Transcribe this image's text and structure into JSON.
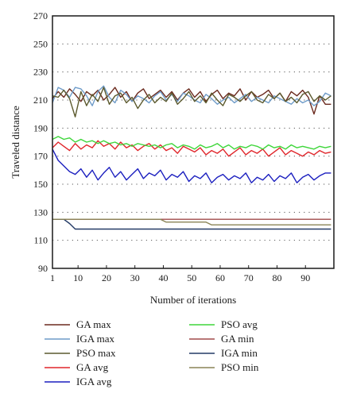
{
  "chart_data": {
    "type": "line",
    "xlabel": "Number of iterations",
    "ylabel": "Traveled distance",
    "xlim": [
      1,
      100
    ],
    "ylim": [
      90,
      270
    ],
    "x_ticks": [
      1,
      10,
      20,
      30,
      40,
      50,
      60,
      70,
      80,
      90
    ],
    "y_ticks": [
      90,
      110,
      130,
      150,
      170,
      190,
      210,
      230,
      250,
      270
    ],
    "grid": "horizontal dotted",
    "legend_position": "bottom, two columns",
    "x": [
      1,
      3,
      5,
      7,
      9,
      11,
      13,
      15,
      17,
      19,
      21,
      23,
      25,
      27,
      29,
      31,
      33,
      35,
      37,
      39,
      41,
      43,
      45,
      47,
      49,
      51,
      53,
      55,
      57,
      59,
      61,
      63,
      65,
      67,
      69,
      71,
      73,
      75,
      77,
      79,
      81,
      83,
      85,
      87,
      89,
      91,
      93,
      95,
      97,
      99
    ],
    "series": [
      {
        "name": "GA max",
        "color": "#6b2a1e",
        "values": [
          211,
          216,
          212,
          218,
          214,
          209,
          216,
          213,
          217,
          210,
          214,
          219,
          212,
          216,
          209,
          215,
          218,
          211,
          214,
          217,
          212,
          216,
          210,
          215,
          218,
          212,
          216,
          209,
          214,
          217,
          211,
          215,
          213,
          218,
          210,
          216,
          212,
          214,
          217,
          211,
          215,
          209,
          216,
          213,
          217,
          212,
          200,
          213,
          207,
          207
        ]
      },
      {
        "name": "IGA max",
        "color": "#6f9cc9",
        "values": [
          208,
          219,
          217,
          212,
          219,
          218,
          213,
          206,
          216,
          220,
          212,
          208,
          217,
          214,
          209,
          213,
          211,
          208,
          213,
          216,
          210,
          214,
          209,
          215,
          213,
          210,
          208,
          214,
          211,
          207,
          210,
          212,
          208,
          211,
          214,
          209,
          212,
          210,
          208,
          213,
          211,
          209,
          207,
          211,
          208,
          210,
          206,
          209,
          215,
          213
        ]
      },
      {
        "name": "PSO max",
        "color": "#5c5a2e",
        "values": [
          213,
          212,
          217,
          211,
          198,
          216,
          206,
          214,
          209,
          219,
          207,
          213,
          215,
          208,
          212,
          204,
          210,
          214,
          208,
          212,
          209,
          215,
          207,
          211,
          216,
          209,
          213,
          208,
          215,
          210,
          206,
          214,
          212,
          209,
          213,
          216,
          210,
          208,
          214,
          211,
          215,
          209,
          212,
          208,
          214,
          216,
          209,
          213,
          210,
          213
        ]
      },
      {
        "name": "GA avg",
        "color": "#e0252a",
        "values": [
          176,
          180,
          177,
          174,
          179,
          175,
          178,
          176,
          181,
          177,
          179,
          175,
          180,
          176,
          178,
          174,
          177,
          179,
          175,
          178,
          174,
          176,
          172,
          177,
          175,
          173,
          176,
          171,
          174,
          172,
          175,
          170,
          173,
          176,
          171,
          174,
          172,
          175,
          170,
          173,
          176,
          171,
          174,
          172,
          170,
          173,
          171,
          174,
          172,
          173
        ]
      },
      {
        "name": "IGA avg",
        "color": "#1b1fbf",
        "values": [
          175,
          167,
          163,
          159,
          157,
          161,
          155,
          160,
          153,
          158,
          162,
          155,
          159,
          153,
          157,
          161,
          154,
          158,
          156,
          160,
          153,
          157,
          155,
          159,
          152,
          156,
          154,
          158,
          151,
          155,
          157,
          153,
          156,
          154,
          158,
          151,
          155,
          153,
          157,
          152,
          156,
          154,
          158,
          151,
          155,
          157,
          153,
          156,
          158,
          158
        ]
      },
      {
        "name": "PSO avg",
        "color": "#3ed63a",
        "values": [
          182,
          184,
          182,
          183,
          180,
          182,
          180,
          181,
          179,
          181,
          179,
          180,
          178,
          179,
          177,
          179,
          178,
          177,
          178,
          176,
          178,
          179,
          176,
          178,
          177,
          175,
          178,
          176,
          177,
          179,
          176,
          178,
          175,
          177,
          176,
          178,
          177,
          175,
          178,
          176,
          177,
          175,
          178,
          176,
          177,
          176,
          175,
          177,
          176,
          177
        ]
      },
      {
        "name": "GA min",
        "color": "#a04a4a",
        "values": [
          125,
          125,
          125,
          125,
          125,
          125,
          125,
          125,
          125,
          125,
          125,
          125,
          125,
          125,
          125,
          125,
          125,
          125,
          125,
          125,
          125,
          125,
          125,
          125,
          125,
          125,
          125,
          125,
          125,
          125,
          125,
          125,
          125,
          125,
          125,
          125,
          125,
          125,
          125,
          125,
          125,
          125,
          125,
          125,
          125,
          125,
          125,
          125,
          125,
          125
        ]
      },
      {
        "name": "IGA min",
        "color": "#233a66",
        "values": [
          125,
          125,
          125,
          122,
          118,
          118,
          118,
          118,
          118,
          118,
          118,
          118,
          118,
          118,
          118,
          118,
          118,
          118,
          118,
          118,
          118,
          118,
          118,
          118,
          118,
          118,
          118,
          118,
          118,
          118,
          118,
          118,
          118,
          118,
          118,
          118,
          118,
          118,
          118,
          118,
          118,
          118,
          118,
          118,
          118,
          118,
          118,
          118,
          118,
          118
        ]
      },
      {
        "name": "PSO min",
        "color": "#8a8456",
        "values": [
          125,
          125,
          125,
          125,
          125,
          125,
          125,
          125,
          125,
          125,
          125,
          125,
          125,
          125,
          125,
          125,
          125,
          125,
          125,
          125,
          123,
          123,
          123,
          123,
          123,
          123,
          123,
          123,
          121,
          121,
          121,
          121,
          121,
          121,
          121,
          121,
          121,
          121,
          121,
          121,
          121,
          121,
          121,
          121,
          121,
          121,
          121,
          121,
          121,
          121
        ]
      }
    ]
  }
}
